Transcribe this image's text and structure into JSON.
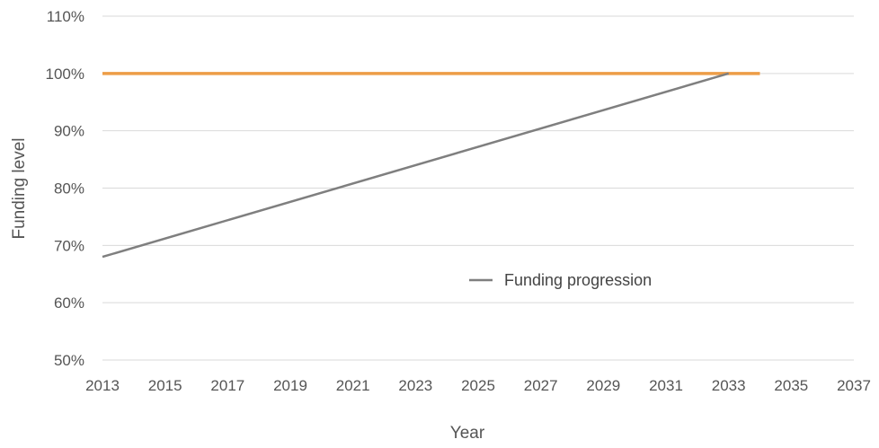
{
  "chart_data": {
    "type": "line",
    "xlabel": "Year",
    "ylabel": "Funding level",
    "xlim": [
      2013,
      2037
    ],
    "ylim": [
      50,
      110
    ],
    "x_ticks": [
      "2013",
      "2015",
      "2017",
      "2019",
      "2021",
      "2023",
      "2025",
      "2027",
      "2029",
      "2031",
      "2033",
      "2035",
      "2037"
    ],
    "y_ticks": [
      "50%",
      "60%",
      "70%",
      "80%",
      "90%",
      "100%",
      "110%"
    ],
    "grid": true,
    "legend": {
      "placement": "center-right",
      "entries": [
        "Funding progression"
      ]
    },
    "series": [
      {
        "name": "Funding progression",
        "color": "#7f7f7f",
        "x": [
          2013,
          2033
        ],
        "y": [
          68,
          100
        ]
      },
      {
        "color": "#ed9d47",
        "x": [
          2013,
          2034
        ],
        "y": [
          100,
          100
        ]
      }
    ]
  },
  "colors": {
    "grid": "#d9d9d9",
    "target_line": "#ed9d47",
    "progression_line": "#7f7f7f"
  }
}
